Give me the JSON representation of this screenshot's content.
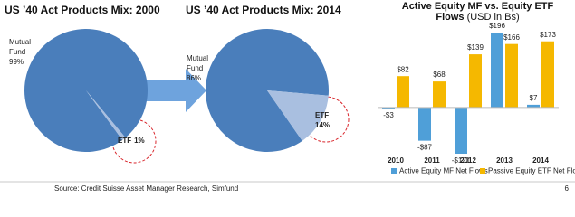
{
  "chart_data": [
    {
      "type": "pie",
      "title": "US ’40 Act Products Mix: 2000",
      "categories": [
        "Mutual Fund",
        "ETF"
      ],
      "values": [
        99,
        1
      ],
      "value_labels": [
        "99%",
        "1%"
      ],
      "colors": [
        "#4a7ebb",
        "#a9bfe0"
      ]
    },
    {
      "type": "pie",
      "title": "US ’40 Act Products Mix: 2014",
      "categories": [
        "Mutual Fund",
        "ETF"
      ],
      "values": [
        86,
        14
      ],
      "value_labels": [
        "86%",
        "14%"
      ],
      "colors": [
        "#4a7ebb",
        "#a9bfe0"
      ]
    },
    {
      "type": "bar",
      "title": "Active Equity MF vs. Equity ETF Flows",
      "subtitle": "(USD in Bs)",
      "categories": [
        "2010",
        "2011",
        "2012",
        "2013",
        "2014"
      ],
      "series": [
        {
          "name": "Active Equity MF Net Flows",
          "color": "#4f9fd8",
          "values": [
            -3,
            -87,
            -121,
            196,
            7
          ],
          "value_labels": [
            "-$3",
            "-$87",
            "-$121",
            "$196",
            "$7"
          ]
        },
        {
          "name": "Passive Equity ETF Net Flows",
          "color": "#f5b800",
          "values": [
            82,
            68,
            139,
            166,
            173
          ],
          "value_labels": [
            "$82",
            "$68",
            "$139",
            "$166",
            "$173"
          ]
        }
      ]
    }
  ],
  "footer": {
    "source": "Source: Credit Suisse Asset Manager Research, Simfund",
    "page_number": "6"
  }
}
